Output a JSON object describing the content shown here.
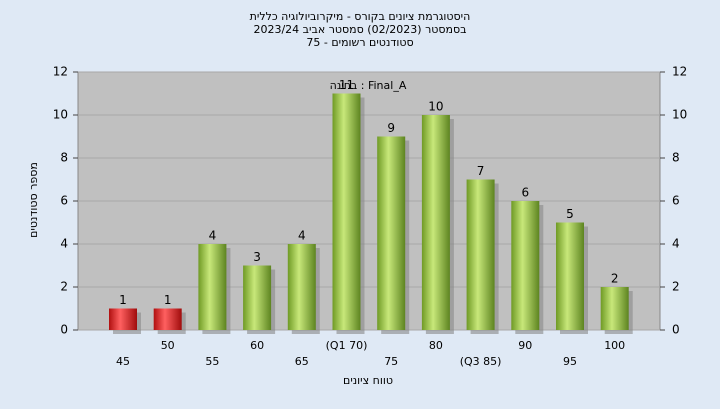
{
  "chart_data": {
    "type": "bar",
    "title": "היסטוגרמת ציונים בקורס - מיקרוביולוגיה כללית",
    "subtitle": "בסמסטר (02/2023) סמסטר אביב 2023/24",
    "subtitle2": "סטודנטים רשומים - 75",
    "annotation": "בחינה : Final_A",
    "x_label": "טווח ציונים",
    "y_label": "מספר סטודנטים",
    "categories": [
      "45",
      "50",
      "55",
      "60",
      "65",
      "(Q1 70)",
      "75",
      "80",
      "(Q3 85)",
      "90",
      "95",
      "100"
    ],
    "values": [
      1,
      1,
      4,
      3,
      4,
      11,
      9,
      10,
      7,
      6,
      5,
      2
    ],
    "colors": [
      "#e02020",
      "#e02020",
      "#8cbf3a",
      "#8cbf3a",
      "#8cbf3a",
      "#8cbf3a",
      "#8cbf3a",
      "#8cbf3a",
      "#8cbf3a",
      "#8cbf3a",
      "#8cbf3a",
      "#8cbf3a"
    ],
    "ylim": [
      0,
      12
    ],
    "yticks": [
      0,
      2,
      4,
      6,
      8,
      10,
      12
    ],
    "grid": true
  }
}
